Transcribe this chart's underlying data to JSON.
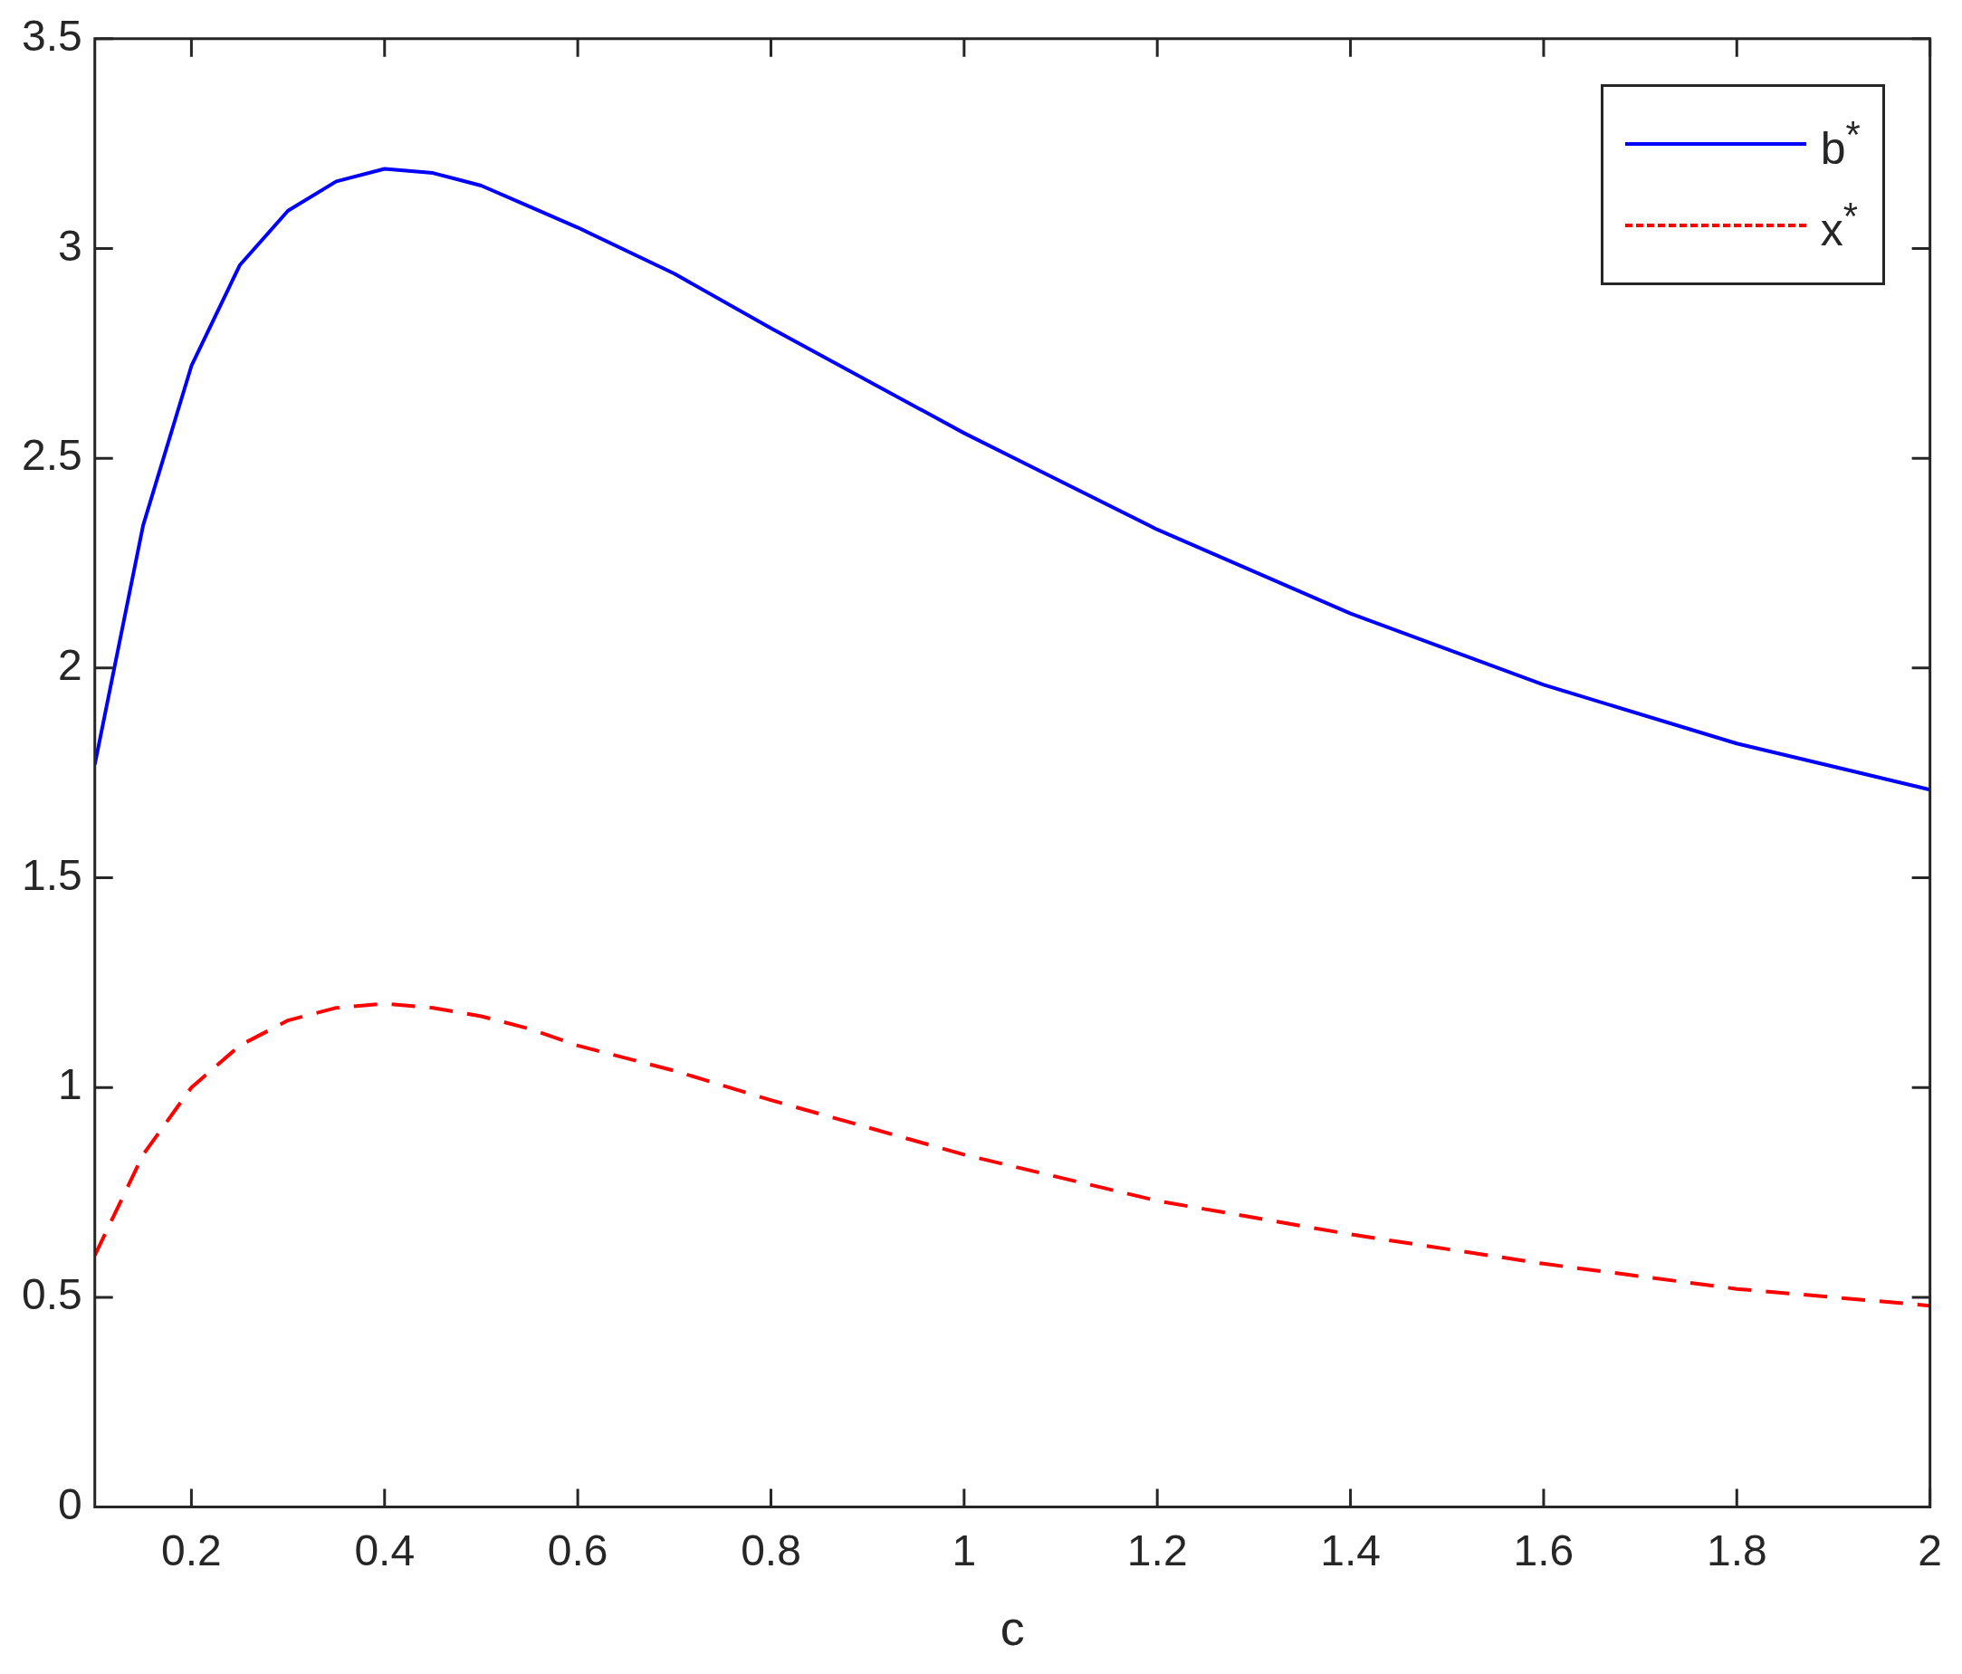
{
  "chart_data": {
    "type": "line",
    "xlabel": "c",
    "x": [
      0.1,
      0.15,
      0.2,
      0.25,
      0.3,
      0.35,
      0.4,
      0.45,
      0.5,
      0.55,
      0.6,
      0.7,
      0.8,
      1.0,
      1.2,
      1.4,
      1.6,
      1.8,
      2.0
    ],
    "series": [
      {
        "name": "b$^{*}$",
        "color": "#0000ff",
        "line_style": "solid",
        "values": [
          1.77,
          2.34,
          2.72,
          2.96,
          3.09,
          3.16,
          3.19,
          3.18,
          3.15,
          3.1,
          3.05,
          2.94,
          2.81,
          2.56,
          2.33,
          2.13,
          1.96,
          1.82,
          1.71
        ]
      },
      {
        "name": "x$^{*}$",
        "color": "#ff0000",
        "line_style": "dashed",
        "values": [
          0.6,
          0.84,
          1.0,
          1.1,
          1.16,
          1.19,
          1.2,
          1.19,
          1.17,
          1.14,
          1.1,
          1.04,
          0.97,
          0.84,
          0.73,
          0.65,
          0.58,
          0.52,
          0.48
        ]
      }
    ],
    "xlim": [
      0.1,
      2
    ],
    "xticks": [
      0.2,
      0.4,
      0.6,
      0.8,
      1,
      1.2,
      1.4,
      1.6,
      1.8,
      2
    ],
    "ylim": [
      0,
      3.5
    ],
    "yticks": [
      0,
      0.5,
      1,
      1.5,
      2,
      2.5,
      3,
      3.5
    ],
    "grid": false,
    "legend": "top right"
  }
}
